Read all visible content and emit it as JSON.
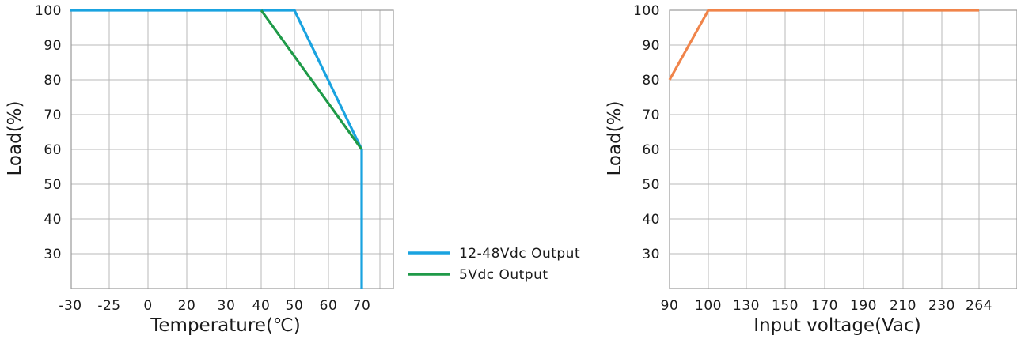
{
  "chart_data": [
    {
      "type": "line",
      "xlabel": "Temperature(℃)",
      "ylabel": "Load(%)",
      "x_tick_labels": [
        "-30",
        "-25",
        "0",
        "20",
        "30",
        "40",
        "50",
        "60",
        "70"
      ],
      "y_tick_labels": [
        "100",
        "90",
        "80",
        "70",
        "60",
        "50",
        "40",
        "30"
      ],
      "ylim": [
        20,
        100
      ],
      "grid": true,
      "legend_position": "right",
      "series": [
        {
          "name": "12-48Vdc Output",
          "color": "#1aa3e0",
          "points": [
            {
              "x": "-30",
              "y": 100
            },
            {
              "x": "50",
              "y": 100
            },
            {
              "x": "70",
              "y": 60
            },
            {
              "x": "70",
              "y": 20
            }
          ]
        },
        {
          "name": "5Vdc Output",
          "color": "#1f9a48",
          "points": [
            {
              "x": "40",
              "y": 100
            },
            {
              "x": "70",
              "y": 60
            }
          ]
        }
      ]
    },
    {
      "type": "line",
      "xlabel": "Input voltage(Vac)",
      "ylabel": "Load(%)",
      "x_tick_labels": [
        "90",
        "100",
        "130",
        "150",
        "170",
        "190",
        "210",
        "230",
        "264"
      ],
      "y_tick_labels": [
        "100",
        "90",
        "80",
        "70",
        "60",
        "50",
        "40",
        "30"
      ],
      "ylim": [
        20,
        100
      ],
      "grid": true,
      "series": [
        {
          "name": "",
          "color": "#f0844a",
          "points": [
            {
              "x": "90",
              "y": 80
            },
            {
              "x": "100",
              "y": 100
            },
            {
              "x": "264",
              "y": 100
            }
          ]
        }
      ]
    }
  ]
}
